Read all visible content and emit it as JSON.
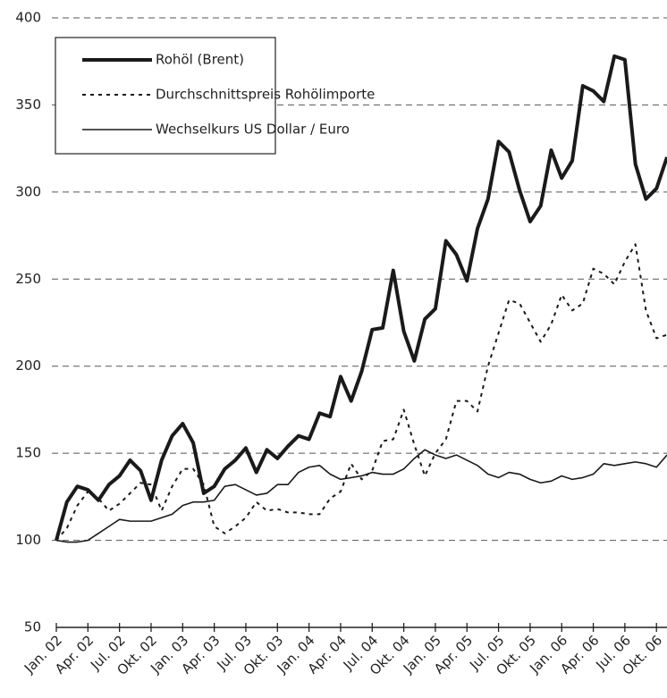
{
  "chart_data": {
    "type": "line",
    "categories": [
      "Jan. 02",
      null,
      null,
      "Apr. 02",
      null,
      null,
      "Jul. 02",
      null,
      null,
      "Okt. 02",
      null,
      null,
      "Jan. 03",
      null,
      null,
      "Apr. 03",
      null,
      null,
      "Jul. 03",
      null,
      null,
      "Okt. 03",
      null,
      null,
      "Jan. 04",
      null,
      null,
      "Apr. 04",
      null,
      null,
      "Jul. 04",
      null,
      null,
      "Okt. 04",
      null,
      null,
      "Jan. 05",
      null,
      null,
      "Apr. 05",
      null,
      null,
      "Jul. 05",
      null,
      null,
      "Okt. 05",
      null,
      null,
      "Jan. 06",
      null,
      null,
      "Apr. 06",
      null,
      null,
      "Jul. 06",
      null,
      null,
      "Okt. 06",
      null
    ],
    "series": [
      {
        "name": "Rohöl (Brent)",
        "color": "#1a1a1a",
        "style": "solid",
        "line_width": 4,
        "values": [
          100,
          122,
          131,
          129,
          123,
          132,
          137,
          146,
          140,
          123,
          146,
          160,
          167,
          156,
          127,
          131,
          141,
          146,
          153,
          139,
          152,
          147,
          154,
          160,
          158,
          173,
          171,
          194,
          180,
          197,
          221,
          222,
          255,
          220,
          203,
          227,
          233,
          272,
          264,
          249,
          279,
          296,
          329,
          323,
          301,
          283,
          292,
          324,
          308,
          318,
          361,
          358,
          352,
          378,
          376,
          316,
          296,
          302,
          320
        ]
      },
      {
        "name": "Durchschnittspreis Rohölimporte",
        "color": "#1a1a1a",
        "style": "dotted",
        "line_width": 2,
        "values": [
          100,
          107,
          120,
          128,
          124,
          117,
          121,
          127,
          133,
          132,
          117,
          131,
          141,
          141,
          132,
          108,
          104,
          108,
          113,
          122,
          117,
          118,
          116,
          116,
          115,
          115,
          124,
          128,
          144,
          135,
          140,
          157,
          158,
          175,
          155,
          137,
          150,
          158,
          180,
          180,
          174,
          200,
          219,
          238,
          236,
          225,
          214,
          224,
          241,
          232,
          236,
          256,
          253,
          247,
          260,
          270,
          232,
          216,
          218
        ]
      },
      {
        "name": "Wechselkurs US Dollar / Euro",
        "color": "#1a1a1a",
        "style": "solid",
        "line_width": 1.6,
        "values": [
          100,
          99,
          99,
          100,
          104,
          108,
          112,
          111,
          111,
          111,
          113,
          115,
          120,
          122,
          122,
          123,
          131,
          132,
          129,
          126,
          127,
          132,
          132,
          139,
          142,
          143,
          138,
          135,
          136,
          137,
          139,
          138,
          138,
          141,
          147,
          152,
          149,
          147,
          149,
          146,
          143,
          138,
          136,
          139,
          138,
          135,
          133,
          134,
          137,
          135,
          136,
          138,
          144,
          143,
          144,
          145,
          144,
          142,
          149
        ]
      }
    ],
    "ylim": [
      50,
      400
    ],
    "yticks": [
      50,
      100,
      150,
      200,
      250,
      300,
      350,
      400
    ],
    "grid": true,
    "legend": "top-left"
  }
}
